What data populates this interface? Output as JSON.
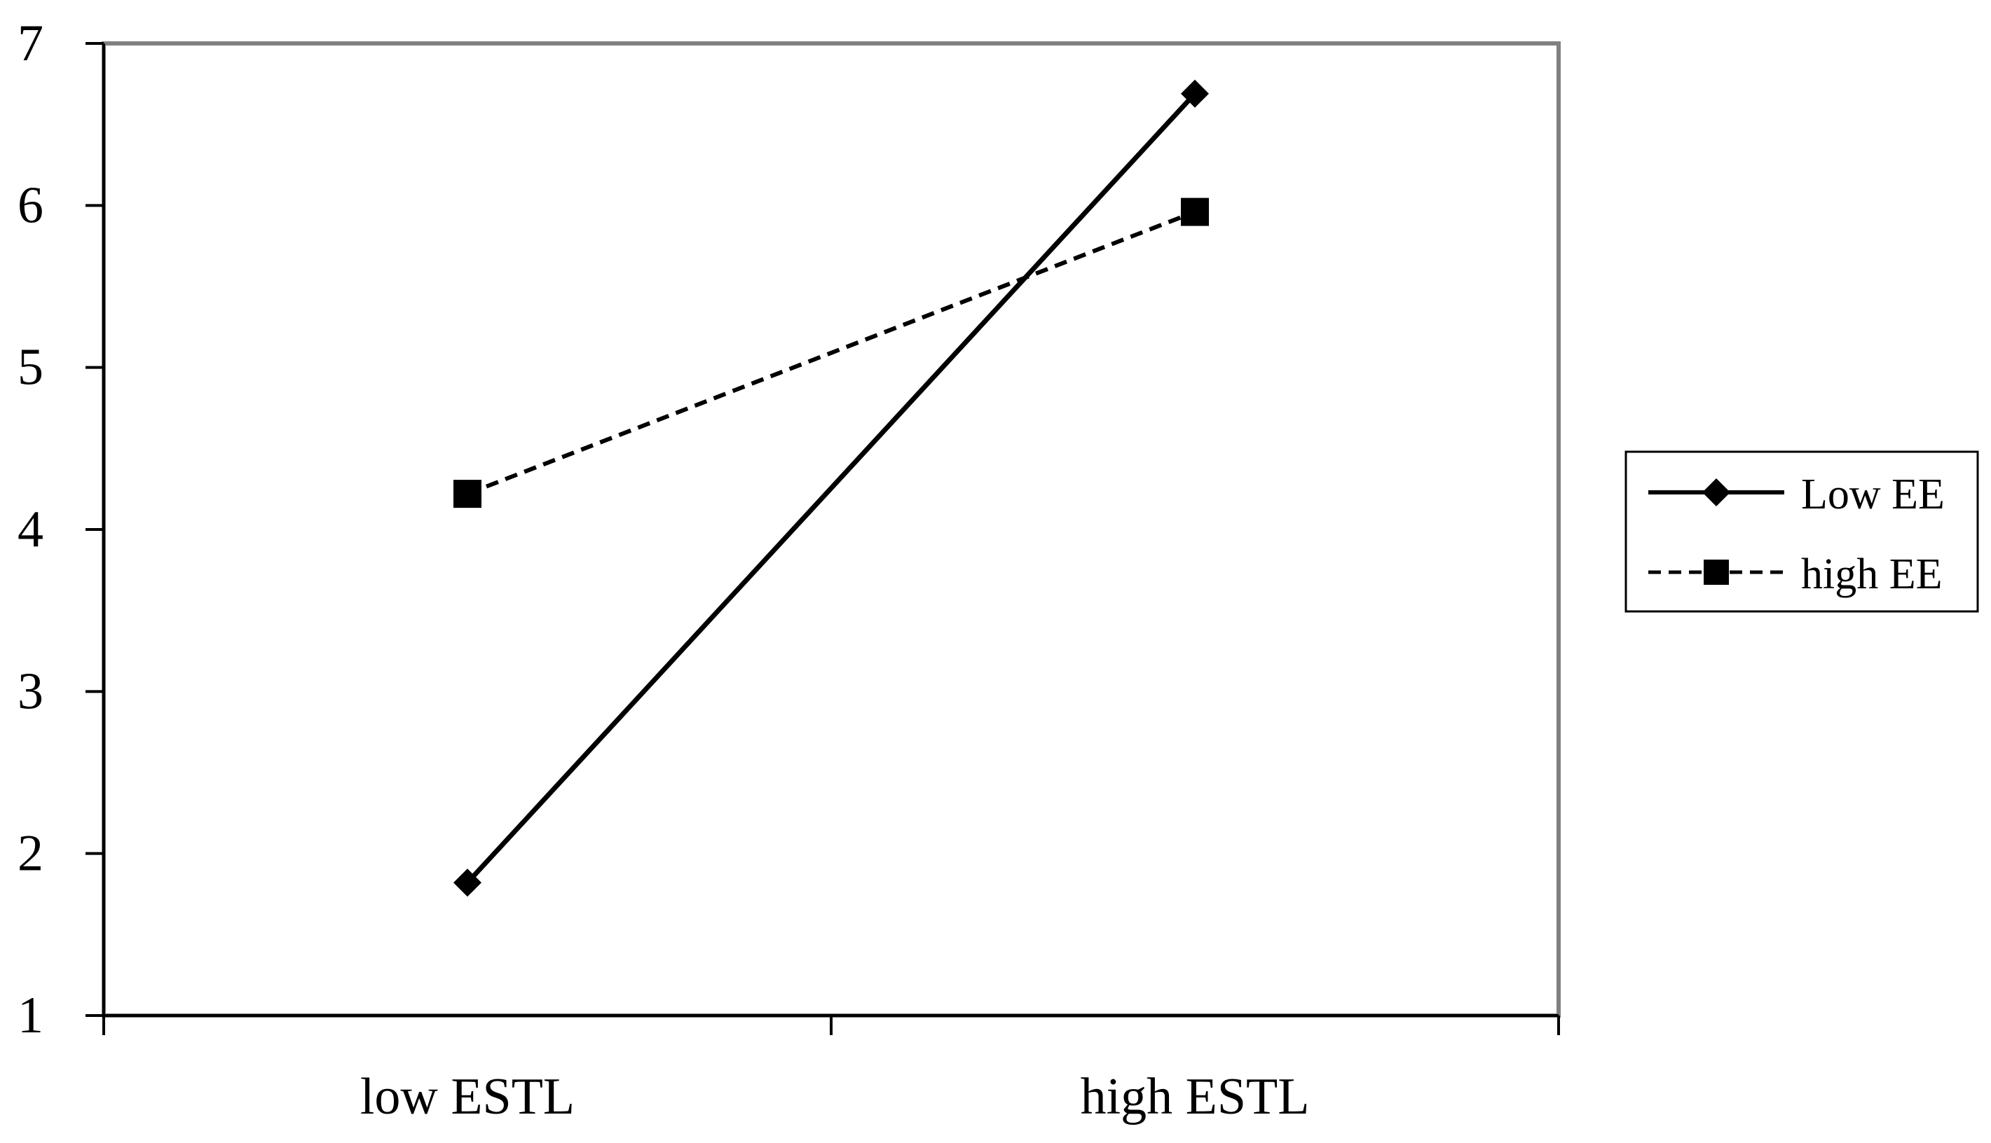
{
  "chart_data": {
    "type": "line",
    "title": "",
    "xlabel": "",
    "ylabel": "",
    "categories": [
      "low ESTL",
      "high ESTL"
    ],
    "ylim": [
      1,
      7
    ],
    "yticks": [
      1,
      2,
      3,
      4,
      5,
      6,
      7
    ],
    "grid": false,
    "legend_position": "right",
    "series": [
      {
        "name": "Low EE",
        "values": [
          1.82,
          6.69
        ],
        "line_style": "solid",
        "marker": "diamond",
        "color": "#000000"
      },
      {
        "name": "high EE",
        "values": [
          4.22,
          5.96
        ],
        "line_style": "dashed",
        "marker": "square",
        "color": "#000000"
      }
    ]
  },
  "colors": {
    "plot_border": "#808080",
    "axis": "#000000",
    "background": "#ffffff"
  }
}
